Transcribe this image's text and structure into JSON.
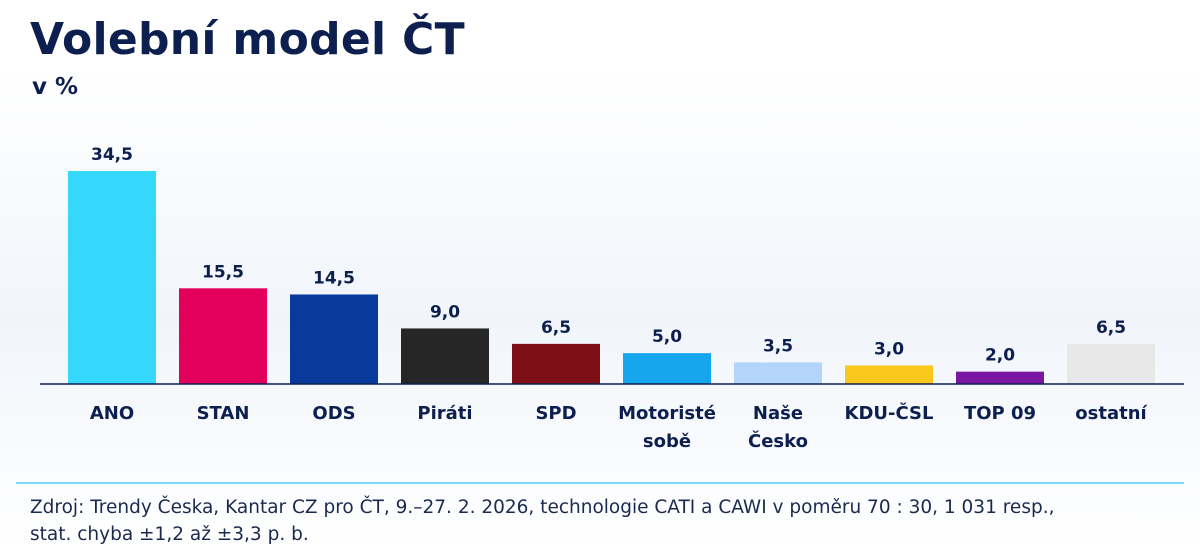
{
  "title": "Volební model ČT",
  "subtitle": "v %",
  "chart_data": {
    "type": "bar",
    "title": "Volební model ČT",
    "subtitle": "v %",
    "categories": [
      [
        "ANO"
      ],
      [
        "STAN"
      ],
      [
        "ODS"
      ],
      [
        "Piráti"
      ],
      [
        "SPD"
      ],
      [
        "Motoristé",
        "sobě"
      ],
      [
        "Naše",
        "Česko"
      ],
      [
        "KDU-ČSL"
      ],
      [
        "TOP 09"
      ],
      [
        "ostatní"
      ]
    ],
    "values": [
      34.5,
      15.5,
      14.5,
      9.0,
      6.5,
      5.0,
      3.5,
      3.0,
      2.0,
      6.5
    ],
    "value_labels": [
      "34,5",
      "15,5",
      "14,5",
      "9,0",
      "6,5",
      "5,0",
      "3,5",
      "3,0",
      "2,0",
      "6,5"
    ],
    "colors": [
      "#35d7fa",
      "#e2005c",
      "#073a9a",
      "#262626",
      "#7f0f17",
      "#15a6ee",
      "#b3d4fb",
      "#f9c81a",
      "#7b16a3",
      "#e8e8e8"
    ],
    "ylim": [
      0,
      34.5
    ],
    "grid": false,
    "legend": "none"
  },
  "source": {
    "line1": "Zdroj: Trendy Česka, Kantar CZ pro ČT, 9.–27. 2. 2026, technologie CATI a CAWI v poměru 70 : 30, 1 031 resp.,",
    "line2": "stat. chyba ±1,2 až ±3,3 p. b."
  }
}
